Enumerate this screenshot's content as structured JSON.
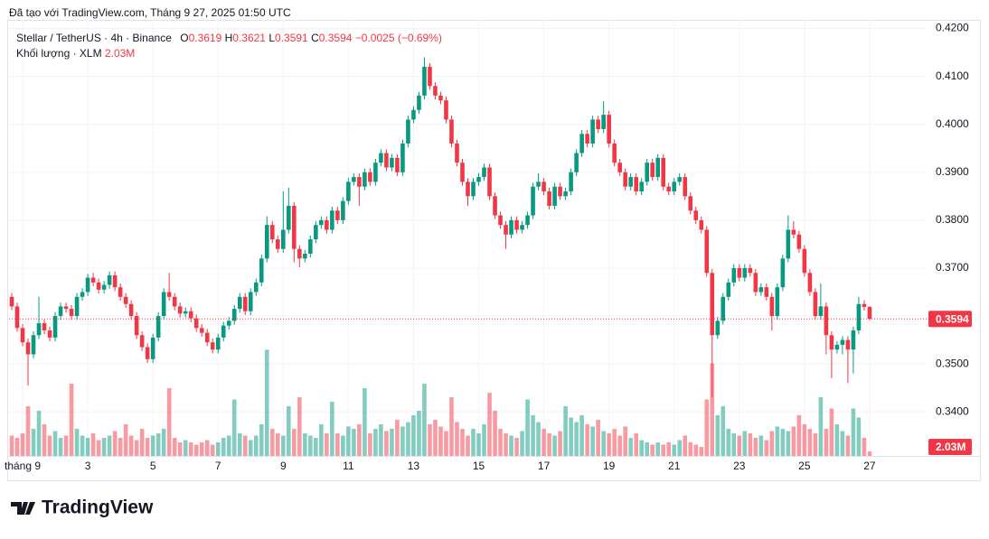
{
  "header": {
    "credit": "Đã tạo với TradingView.com, Tháng 9 27, 2025 01:50 UTC",
    "logo": "TradingView"
  },
  "chart_data": {
    "type": "candlestick",
    "title": "Stellar / TetherUS · 4h · Binance",
    "o_label": "O",
    "h_label": "H",
    "l_label": "L",
    "c_label": "C",
    "change": "−0.0025 (−0.69%)",
    "volume_title": "Khối lượng · XLM",
    "volume_value_label": "2.03M",
    "open": [
      0.364,
      0.362,
      0.3575,
      0.3545,
      0.352,
      0.356,
      0.3585,
      0.357,
      0.3555,
      0.36,
      0.362,
      0.3615,
      0.36,
      0.364,
      0.365,
      0.368,
      0.367,
      0.3655,
      0.3665,
      0.3685,
      0.366,
      0.364,
      0.3625,
      0.36,
      0.356,
      0.3535,
      0.351,
      0.3555,
      0.36,
      0.365,
      0.364,
      0.362,
      0.3605,
      0.361,
      0.3595,
      0.3575,
      0.3565,
      0.3545,
      0.353,
      0.3555,
      0.358,
      0.359,
      0.3615,
      0.364,
      0.361,
      0.365,
      0.367,
      0.372,
      0.379,
      0.376,
      0.374,
      0.378,
      0.383,
      0.374,
      0.372,
      0.373,
      0.376,
      0.379,
      0.38,
      0.378,
      0.382,
      0.38,
      0.384,
      0.388,
      0.389,
      0.387,
      0.39,
      0.388,
      0.392,
      0.394,
      0.391,
      0.393,
      0.39,
      0.396,
      0.401,
      0.403,
      0.406,
      0.412,
      0.408,
      0.406,
      0.405,
      0.401,
      0.396,
      0.392,
      0.388,
      0.385,
      0.388,
      0.389,
      0.391,
      0.385,
      0.381,
      0.379,
      0.377,
      0.38,
      0.378,
      0.379,
      0.381,
      0.387,
      0.388,
      0.386,
      0.383,
      0.387,
      0.385,
      0.386,
      0.39,
      0.394,
      0.398,
      0.396,
      0.401,
      0.399,
      0.402,
      0.396,
      0.392,
      0.39,
      0.387,
      0.389,
      0.386,
      0.388,
      0.392,
      0.389,
      0.393,
      0.387,
      0.386,
      0.388,
      0.389,
      0.385,
      0.382,
      0.38,
      0.378,
      0.369,
      0.356,
      0.359,
      0.364,
      0.367,
      0.37,
      0.368,
      0.37,
      0.369,
      0.365,
      0.366,
      0.364,
      0.36,
      0.366,
      0.372,
      0.378,
      0.377,
      0.374,
      0.369,
      0.365,
      0.36,
      0.362,
      0.356,
      0.353,
      0.354,
      0.355,
      0.353,
      0.357,
      0.3625,
      0.3619
    ],
    "high": [
      0.3648,
      0.3628,
      0.3583,
      0.3553,
      0.3568,
      0.364,
      0.3593,
      0.3578,
      0.3608,
      0.3628,
      0.3628,
      0.3623,
      0.3648,
      0.3658,
      0.3688,
      0.369,
      0.3678,
      0.3673,
      0.3693,
      0.3693,
      0.3668,
      0.3648,
      0.3633,
      0.3608,
      0.3568,
      0.3543,
      0.3563,
      0.3608,
      0.3658,
      0.369,
      0.3648,
      0.3628,
      0.3618,
      0.3618,
      0.3603,
      0.3583,
      0.3573,
      0.3553,
      0.3563,
      0.3588,
      0.3598,
      0.3623,
      0.3648,
      0.3648,
      0.3658,
      0.3678,
      0.3728,
      0.3808,
      0.3798,
      0.3768,
      0.386,
      0.3868,
      0.3838,
      0.3748,
      0.3738,
      0.3768,
      0.3798,
      0.3808,
      0.3808,
      0.3828,
      0.3828,
      0.3848,
      0.3888,
      0.3898,
      0.3898,
      0.3908,
      0.3908,
      0.3928,
      0.3948,
      0.3948,
      0.3938,
      0.3938,
      0.3968,
      0.4018,
      0.4038,
      0.4068,
      0.414,
      0.4128,
      0.4088,
      0.4068,
      0.4058,
      0.4018,
      0.3968,
      0.3928,
      0.3888,
      0.3888,
      0.3898,
      0.3918,
      0.3918,
      0.3858,
      0.3818,
      0.3798,
      0.3808,
      0.3808,
      0.3798,
      0.3818,
      0.3878,
      0.3898,
      0.3888,
      0.3868,
      0.3878,
      0.3878,
      0.3868,
      0.3908,
      0.3948,
      0.3988,
      0.3988,
      0.4018,
      0.4018,
      0.4048,
      0.4028,
      0.3968,
      0.3928,
      0.3908,
      0.3898,
      0.3898,
      0.3888,
      0.3928,
      0.3928,
      0.3938,
      0.3938,
      0.3878,
      0.3888,
      0.3898,
      0.3898,
      0.3858,
      0.3828,
      0.3808,
      0.3788,
      0.3698,
      0.3598,
      0.3648,
      0.3678,
      0.3708,
      0.3708,
      0.3708,
      0.3708,
      0.3698,
      0.3668,
      0.3668,
      0.3648,
      0.3668,
      0.3728,
      0.381,
      0.3798,
      0.3778,
      0.3748,
      0.3698,
      0.3658,
      0.3668,
      0.3628,
      0.3568,
      0.3548,
      0.3558,
      0.3558,
      0.3578,
      0.364,
      0.3633,
      0.3621
    ],
    "low": [
      0.3612,
      0.3567,
      0.3537,
      0.3455,
      0.3512,
      0.3552,
      0.3562,
      0.3547,
      0.3547,
      0.3592,
      0.3607,
      0.3592,
      0.3592,
      0.3632,
      0.3642,
      0.3662,
      0.3647,
      0.3647,
      0.3657,
      0.3652,
      0.3632,
      0.3617,
      0.3592,
      0.3552,
      0.3527,
      0.3502,
      0.3502,
      0.3547,
      0.3592,
      0.3632,
      0.3612,
      0.3597,
      0.3597,
      0.3587,
      0.3567,
      0.3557,
      0.3537,
      0.3522,
      0.3522,
      0.3547,
      0.3572,
      0.3582,
      0.3607,
      0.3602,
      0.3602,
      0.3642,
      0.3662,
      0.3712,
      0.3752,
      0.3732,
      0.3732,
      0.3772,
      0.3712,
      0.3702,
      0.3712,
      0.3722,
      0.3752,
      0.3782,
      0.3772,
      0.3772,
      0.3792,
      0.3792,
      0.3832,
      0.3872,
      0.383,
      0.3862,
      0.3872,
      0.3872,
      0.3912,
      0.3902,
      0.3902,
      0.3892,
      0.3892,
      0.3952,
      0.4002,
      0.4022,
      0.4052,
      0.4072,
      0.4052,
      0.4042,
      0.4002,
      0.3952,
      0.3912,
      0.3872,
      0.383,
      0.3842,
      0.3872,
      0.3882,
      0.3842,
      0.3802,
      0.3782,
      0.374,
      0.3762,
      0.3772,
      0.3772,
      0.3782,
      0.3802,
      0.3862,
      0.3852,
      0.3822,
      0.3822,
      0.3842,
      0.3842,
      0.3852,
      0.3892,
      0.3932,
      0.3952,
      0.3952,
      0.3982,
      0.3982,
      0.3952,
      0.3912,
      0.3892,
      0.3862,
      0.3862,
      0.3852,
      0.3852,
      0.3872,
      0.3882,
      0.3882,
      0.3862,
      0.3852,
      0.3852,
      0.3872,
      0.3842,
      0.3812,
      0.3792,
      0.3772,
      0.3682,
      0.343,
      0.3552,
      0.3582,
      0.3632,
      0.3662,
      0.3672,
      0.3672,
      0.3682,
      0.3642,
      0.3642,
      0.3632,
      0.357,
      0.3592,
      0.3652,
      0.3712,
      0.3762,
      0.3732,
      0.3682,
      0.3642,
      0.3592,
      0.3592,
      0.352,
      0.347,
      0.3522,
      0.352,
      0.346,
      0.348,
      0.3562,
      0.3611,
      0.3591
    ],
    "close": [
      0.362,
      0.3575,
      0.3545,
      0.352,
      0.356,
      0.3585,
      0.357,
      0.3555,
      0.36,
      0.362,
      0.3615,
      0.36,
      0.364,
      0.365,
      0.368,
      0.367,
      0.3655,
      0.3665,
      0.3685,
      0.366,
      0.364,
      0.3625,
      0.36,
      0.356,
      0.3535,
      0.351,
      0.3555,
      0.36,
      0.365,
      0.364,
      0.362,
      0.3605,
      0.361,
      0.3595,
      0.3575,
      0.3565,
      0.3545,
      0.353,
      0.3555,
      0.358,
      0.359,
      0.3615,
      0.364,
      0.361,
      0.365,
      0.367,
      0.372,
      0.379,
      0.376,
      0.374,
      0.378,
      0.383,
      0.374,
      0.372,
      0.373,
      0.376,
      0.379,
      0.38,
      0.378,
      0.382,
      0.38,
      0.384,
      0.388,
      0.389,
      0.387,
      0.39,
      0.388,
      0.392,
      0.394,
      0.391,
      0.393,
      0.39,
      0.396,
      0.401,
      0.403,
      0.406,
      0.412,
      0.408,
      0.406,
      0.405,
      0.401,
      0.396,
      0.392,
      0.388,
      0.385,
      0.388,
      0.389,
      0.391,
      0.385,
      0.381,
      0.379,
      0.377,
      0.38,
      0.378,
      0.379,
      0.381,
      0.387,
      0.388,
      0.386,
      0.383,
      0.387,
      0.385,
      0.386,
      0.39,
      0.394,
      0.398,
      0.396,
      0.401,
      0.399,
      0.402,
      0.396,
      0.392,
      0.39,
      0.387,
      0.389,
      0.386,
      0.388,
      0.392,
      0.389,
      0.393,
      0.387,
      0.386,
      0.388,
      0.389,
      0.385,
      0.382,
      0.38,
      0.378,
      0.369,
      0.356,
      0.359,
      0.364,
      0.367,
      0.37,
      0.368,
      0.37,
      0.369,
      0.365,
      0.366,
      0.364,
      0.36,
      0.366,
      0.372,
      0.378,
      0.377,
      0.374,
      0.369,
      0.365,
      0.36,
      0.362,
      0.356,
      0.353,
      0.354,
      0.355,
      0.353,
      0.357,
      0.3625,
      0.3619,
      0.3594
    ],
    "volume": [
      9,
      8,
      10,
      22,
      12,
      20,
      14,
      9,
      11,
      8,
      9,
      32,
      12,
      9,
      8,
      10,
      7,
      8,
      9,
      11,
      8,
      14,
      9,
      7,
      12,
      8,
      9,
      10,
      12,
      30,
      8,
      6,
      7,
      6,
      5,
      6,
      7,
      5,
      6,
      8,
      9,
      25,
      10,
      9,
      7,
      9,
      14,
      47,
      12,
      10,
      9,
      22,
      12,
      26,
      10,
      9,
      8,
      14,
      10,
      24,
      10,
      9,
      13,
      12,
      14,
      30,
      10,
      12,
      14,
      11,
      12,
      16,
      13,
      15,
      18,
      20,
      32,
      14,
      16,
      13,
      11,
      26,
      15,
      12,
      9,
      12,
      10,
      14,
      28,
      20,
      12,
      10,
      9,
      8,
      11,
      25,
      18,
      15,
      12,
      10,
      9,
      11,
      22,
      17,
      15,
      18,
      14,
      13,
      16,
      11,
      10,
      12,
      9,
      13,
      8,
      10,
      7,
      6,
      5,
      6,
      5,
      6,
      5,
      7,
      9,
      6,
      5,
      4,
      25,
      41,
      18,
      22,
      12,
      10,
      9,
      11,
      10,
      8,
      9,
      7,
      11,
      13,
      12,
      11,
      13,
      18,
      14,
      12,
      10,
      26,
      12,
      21,
      14,
      11,
      9,
      21,
      17,
      8,
      2.03
    ],
    "up_color": "#089981",
    "down_color": "#f23645",
    "xlim": [
      -0.5,
      168.5
    ],
    "xticks": [
      {
        "value": 2,
        "label": "tháng 9"
      },
      {
        "value": 14,
        "label": "3"
      },
      {
        "value": 26,
        "label": "5"
      },
      {
        "value": 38,
        "label": "7"
      },
      {
        "value": 50,
        "label": "9"
      },
      {
        "value": 62,
        "label": "11"
      },
      {
        "value": 74,
        "label": "13"
      },
      {
        "value": 86,
        "label": "15"
      },
      {
        "value": 98,
        "label": "17"
      },
      {
        "value": 110,
        "label": "19"
      },
      {
        "value": 122,
        "label": "21"
      },
      {
        "value": 134,
        "label": "23"
      },
      {
        "value": 146,
        "label": "25"
      },
      {
        "value": 158,
        "label": "27"
      }
    ],
    "ylim": [
      0.3308,
      0.4218
    ],
    "yticks": [
      {
        "value": 0.42,
        "label": "0.4200"
      },
      {
        "value": 0.41,
        "label": "0.4100"
      },
      {
        "value": 0.4,
        "label": "0.4000"
      },
      {
        "value": 0.39,
        "label": "0.3900"
      },
      {
        "value": 0.38,
        "label": "0.3800"
      },
      {
        "value": 0.37,
        "label": "0.3700"
      },
      {
        "value": 0.36,
        "label": "0.3600"
      },
      {
        "value": 0.35,
        "label": "0.3500"
      },
      {
        "value": 0.34,
        "label": "0.3400"
      }
    ],
    "volume_lim": [
      0,
      193
    ],
    "grid": true
  }
}
